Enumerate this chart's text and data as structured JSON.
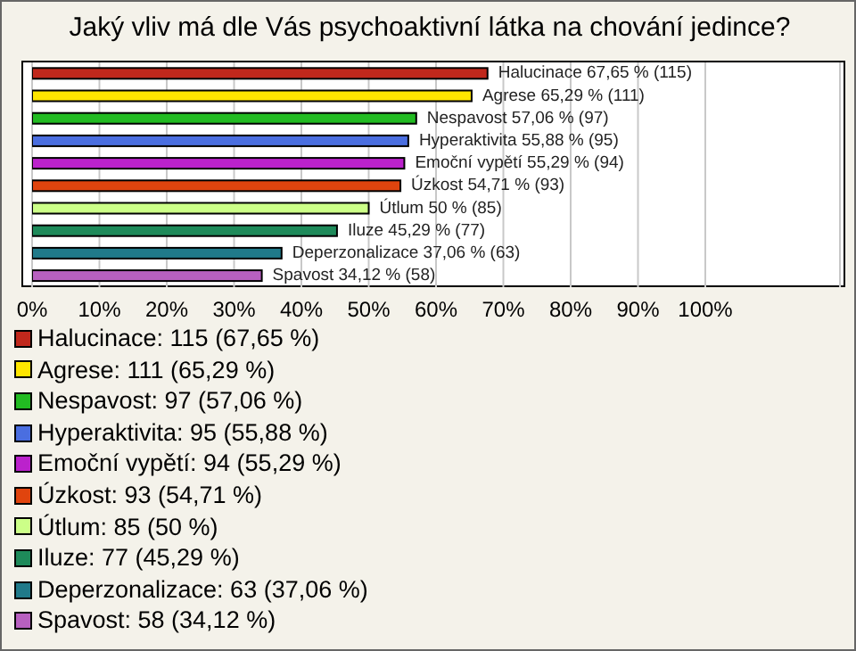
{
  "chart_data": {
    "type": "bar",
    "orientation": "horizontal",
    "stacked": true,
    "title": "Jaký vliv má dle Vás psychoaktivní látka na chování jedince?",
    "categories": [
      null,
      null,
      null,
      null,
      null,
      null,
      null,
      null,
      null,
      null
    ],
    "xlim": [
      0,
      120
    ],
    "xticks": [
      {
        "value": 0,
        "label": "0%"
      },
      {
        "value": 10,
        "label": "10%"
      },
      {
        "value": 20,
        "label": "20%"
      },
      {
        "value": 30,
        "label": "30%"
      },
      {
        "value": 40,
        "label": "40%"
      },
      {
        "value": 50,
        "label": "50%"
      },
      {
        "value": 60,
        "label": "60%"
      },
      {
        "value": 70,
        "label": "70%"
      },
      {
        "value": 80,
        "label": "80%"
      },
      {
        "value": 90,
        "label": "90%"
      },
      {
        "value": 100,
        "label": "100%"
      }
    ],
    "grid": "x",
    "legend": "bottom",
    "tick_labels": "x",
    "series": [
      {
        "name": "Halucinace: 115 (67,65 %)",
        "color": "#c0281c",
        "values": [
          67.65,
          null,
          null,
          null,
          null,
          null,
          null,
          null,
          null,
          null
        ],
        "value_labels": [
          "Halucinace 67,65 % (115)",
          null,
          null,
          null,
          null,
          null,
          null,
          null,
          null,
          null
        ]
      },
      {
        "name": "Agrese: 111 (65,29 %)",
        "color": "#ffe600",
        "values": [
          null,
          65.29,
          null,
          null,
          null,
          null,
          null,
          null,
          null,
          null
        ],
        "value_labels": [
          null,
          "Agrese 65,29 % (111)",
          null,
          null,
          null,
          null,
          null,
          null,
          null,
          null
        ]
      },
      {
        "name": "Nespavost: 97 (57,06 %)",
        "color": "#22bb22",
        "values": [
          null,
          null,
          57.06,
          null,
          null,
          null,
          null,
          null,
          null,
          null
        ],
        "value_labels": [
          null,
          null,
          "Nespavost 57,06 % (97)",
          null,
          null,
          null,
          null,
          null,
          null,
          null
        ]
      },
      {
        "name": "Hyperaktivita: 95 (55,88 %)",
        "color": "#4a6ee0",
        "values": [
          null,
          null,
          null,
          55.88,
          null,
          null,
          null,
          null,
          null,
          null
        ],
        "value_labels": [
          null,
          null,
          null,
          "Hyperaktivita 55,88 % (95)",
          null,
          null,
          null,
          null,
          null,
          null
        ]
      },
      {
        "name": "Emoční vypětí: 94 (55,29 %)",
        "color": "#bb22cc",
        "values": [
          null,
          null,
          null,
          null,
          55.29,
          null,
          null,
          null,
          null,
          null
        ],
        "value_labels": [
          null,
          null,
          null,
          null,
          "Emoční vypětí 55,29 % (94)",
          null,
          null,
          null,
          null,
          null
        ]
      },
      {
        "name": "Úzkost: 93 (54,71 %)",
        "color": "#e0440e",
        "values": [
          null,
          null,
          null,
          null,
          null,
          54.71,
          null,
          null,
          null,
          null
        ],
        "value_labels": [
          null,
          null,
          null,
          null,
          null,
          "Úzkost 54,71 % (93)",
          null,
          null,
          null,
          null
        ]
      },
      {
        "name": "Útlum: 85 (50 %)",
        "color": "#ccff88",
        "values": [
          null,
          null,
          null,
          null,
          null,
          null,
          50,
          null,
          null,
          null
        ],
        "value_labels": [
          null,
          null,
          null,
          null,
          null,
          null,
          "Útlum 50 % (85)",
          null,
          null,
          null
        ]
      },
      {
        "name": "Iluze: 77 (45,29 %)",
        "color": "#1e8a5a",
        "values": [
          null,
          null,
          null,
          null,
          null,
          null,
          null,
          45.29,
          null,
          null
        ],
        "value_labels": [
          null,
          null,
          null,
          null,
          null,
          null,
          null,
          "Iluze 45,29 % (77)",
          null,
          null
        ]
      },
      {
        "name": "Deperzonalizace: 63 (37,06 %)",
        "color": "#207a8a",
        "values": [
          null,
          null,
          null,
          null,
          null,
          null,
          null,
          null,
          37.06,
          null
        ],
        "value_labels": [
          null,
          null,
          null,
          null,
          null,
          null,
          null,
          null,
          "Deperzonalizace 37,06 % (63)",
          null
        ]
      },
      {
        "name": "Spavost: 58 (34,12 %)",
        "color": "#b860c0",
        "values": [
          null,
          null,
          null,
          null,
          null,
          null,
          null,
          null,
          null,
          34.12
        ],
        "value_labels": [
          null,
          null,
          null,
          null,
          null,
          null,
          null,
          null,
          null,
          "Spavost 34,12 % (58)"
        ]
      }
    ]
  }
}
